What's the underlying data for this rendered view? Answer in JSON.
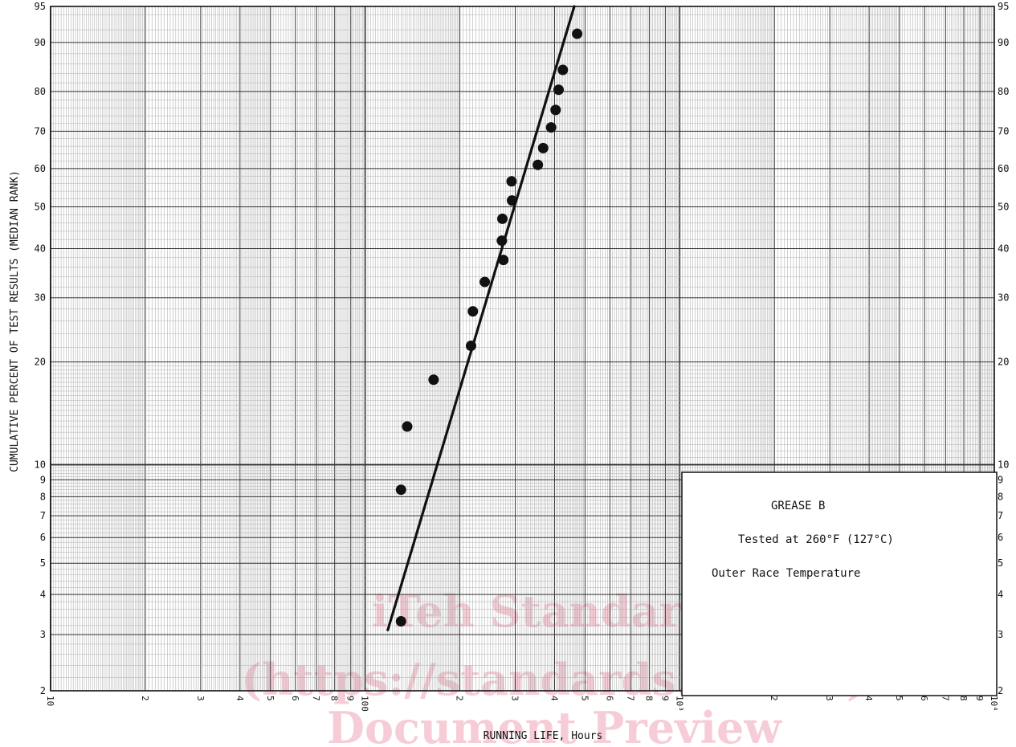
{
  "chart_data": {
    "type": "scatter",
    "title": "",
    "xlabel": "RUNNING LIFE, Hours",
    "ylabel": "CUMULATIVE PERCENT OF TEST RESULTS (MEDIAN RANK)",
    "x_scale": "log",
    "y_scale": "weibull",
    "xlim": [
      10,
      10000
    ],
    "ylim": [
      2,
      95
    ],
    "grid": true,
    "x_tick_labels": [
      "10",
      "2",
      "3",
      "4",
      "5",
      "6",
      "7",
      "8",
      "9",
      "100",
      "2",
      "3",
      "4",
      "5",
      "6",
      "7",
      "8",
      "9",
      "10³",
      "2",
      "3",
      "4",
      "5",
      "6",
      "7",
      "8",
      "9",
      "10⁴"
    ],
    "y_tick_labels": [
      "2",
      "3",
      "4",
      "5",
      "6",
      "7",
      "8",
      "9",
      "10",
      "20",
      "30",
      "40",
      "50",
      "60",
      "70",
      "80",
      "90",
      "95"
    ],
    "series": [
      {
        "points": [
          {
            "x": 130,
            "y": 3.3
          },
          {
            "x": 130,
            "y": 8.4
          },
          {
            "x": 136,
            "y": 13.0
          },
          {
            "x": 165,
            "y": 17.8
          },
          {
            "x": 217,
            "y": 22.2
          },
          {
            "x": 220,
            "y": 27.6
          },
          {
            "x": 240,
            "y": 33.0
          },
          {
            "x": 275,
            "y": 37.5
          },
          {
            "x": 272,
            "y": 41.8
          },
          {
            "x": 273,
            "y": 47.0
          },
          {
            "x": 293,
            "y": 51.6
          },
          {
            "x": 292,
            "y": 56.6
          },
          {
            "x": 354,
            "y": 61.0
          },
          {
            "x": 368,
            "y": 65.5
          },
          {
            "x": 390,
            "y": 71.0
          },
          {
            "x": 403,
            "y": 75.5
          },
          {
            "x": 412,
            "y": 80.4
          },
          {
            "x": 425,
            "y": 84.8
          },
          {
            "x": 472,
            "y": 91.4
          }
        ]
      }
    ],
    "fit_line": {
      "start": {
        "x": 118,
        "y": 3.1
      },
      "end": {
        "x": 462,
        "y": 95
      }
    }
  },
  "annotation": {
    "line1": "GREASE B",
    "line2": "Tested at 260°F (127°C)",
    "line3": "Outer Race Temperature"
  },
  "watermark": {
    "line1": "iTeh Standards",
    "line2": "(https://standards.iteh.ai)",
    "line3": "Document Preview"
  }
}
